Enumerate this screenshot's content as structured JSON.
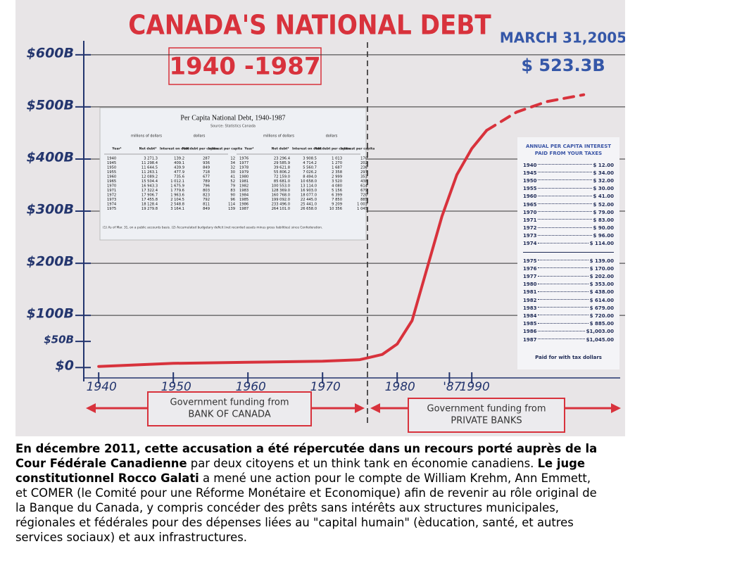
{
  "chart_data": {
    "type": "line",
    "title": "CANADA'S NATIONAL DEBT",
    "subtitle": "1940 -1987",
    "x": [
      1940,
      1950,
      1960,
      1970,
      1975,
      1978,
      1980,
      1982,
      1984,
      1986,
      1988,
      1990,
      1992,
      1996,
      2000,
      2005
    ],
    "series": [
      {
        "color": "#d8323c",
        "dashed": false,
        "values": [
          2,
          8,
          10,
          12,
          15,
          25,
          45,
          90,
          190,
          290,
          370,
          420,
          455,
          null,
          null,
          null
        ]
      },
      {
        "color": "#d8323c",
        "dashed": true,
        "values": [
          null,
          null,
          null,
          null,
          null,
          null,
          null,
          null,
          null,
          null,
          null,
          null,
          455,
          490,
          510,
          523.3
        ]
      }
    ],
    "xlim": [
      1938,
      2008
    ],
    "ylim": [
      -20,
      620
    ],
    "xticks": [
      1940,
      1950,
      1960,
      1970,
      1980,
      {
        "value": 1987,
        "label": "'87"
      },
      1990
    ],
    "yticks": [
      {
        "value": 0,
        "label": "$0"
      },
      {
        "value": 50,
        "label": "$50B"
      },
      {
        "value": 100,
        "label": "$100B"
      },
      {
        "value": 200,
        "label": "$200B"
      },
      {
        "value": 300,
        "label": "$300B"
      },
      {
        "value": 400,
        "label": "$400B"
      },
      {
        "value": 500,
        "label": "$500B"
      },
      {
        "value": 600,
        "label": "$600B"
      }
    ],
    "grid": true,
    "annotations": [
      "MARCH 31,2005",
      "$ 523.3B"
    ]
  },
  "funding": [
    {
      "lines": [
        "Government funding from",
        "BANK OF CANADA"
      ]
    },
    {
      "lines": [
        "Government funding from",
        "PRIVATE BANKS"
      ]
    }
  ],
  "inset_table": {
    "title": "Per Capita National Debt, 1940-1987",
    "source": "Source: Statistics Canada",
    "group_headers": [
      "millions of dollars",
      "dollars"
    ],
    "columns": [
      "Year¹",
      "Net debt²",
      "Interest on debt",
      "Net debt per capita",
      "Interest per capita"
    ],
    "rows": [
      [
        "1940",
        "3 271.3",
        "139.2",
        "287",
        "12"
      ],
      [
        "1945",
        "11 298.4",
        "409.1",
        "936",
        "34"
      ],
      [
        "1950",
        "11 644.5",
        "439.9",
        "849",
        "32"
      ],
      [
        "1955",
        "11 263.1",
        "477.9",
        "718",
        "30"
      ],
      [
        "1960",
        "12 089.2",
        "735.6",
        "677",
        "41"
      ],
      [
        "1965",
        "15 504.4",
        "1 012.1",
        "789",
        "52"
      ],
      [
        "1970",
        "16 943.3",
        "1 675.9",
        "796",
        "79"
      ],
      [
        "1971",
        "17 322.4",
        "1 779.6",
        "803",
        "83"
      ],
      [
        "1972",
        "17 906.7",
        "1 963.6",
        "823",
        "90"
      ],
      [
        "1973",
        "17 455.8",
        "2 104.5",
        "792",
        "96"
      ],
      [
        "1974",
        "18 128.4",
        "2 548.8",
        "811",
        "114"
      ],
      [
        "1975",
        "19 279.8",
        "3 164.1",
        "849",
        "139"
      ],
      [
        "1976",
        "23 296.4",
        "3 908.5",
        "1 013",
        "170"
      ],
      [
        "1977",
        "29 585.9",
        "4 714.2",
        "1 270",
        "202"
      ],
      [
        "1978",
        "39 621.8",
        "5 560.7",
        "1 687",
        "236"
      ],
      [
        "1979",
        "55 806.2",
        "7 026.2",
        "2 358",
        "297"
      ],
      [
        "1980",
        "72 159.0",
        "8 494.0",
        "2 999",
        "353"
      ],
      [
        "1981",
        "85 681.0",
        "10 658.0",
        "3 520",
        "438"
      ],
      [
        "1982",
        "100 553.0",
        "13 114.0",
        "4 080",
        "614"
      ],
      [
        "1983",
        "128 369.0",
        "16 903.0",
        "5 156",
        "679"
      ],
      [
        "1984",
        "160 768.0",
        "18 077.0",
        "6 399",
        "720"
      ],
      [
        "1985",
        "199 092.0",
        "22 445.0",
        "7 850",
        "885"
      ],
      [
        "1986",
        "233 496.0",
        "25 441.0",
        "9 209",
        "1 003"
      ],
      [
        "1987",
        "264 101.0",
        "26 658.0",
        "10 356",
        "1 045"
      ]
    ],
    "footnote": "(1) As of Mar. 31, on a public accounts basis. (2) Accumulated budgetary deficit (net recorded assets minus gross liabilities) since Confederation."
  },
  "interest_panel": {
    "title": "ANNUAL PER CAPITA INTEREST PAID FROM YOUR TAXES",
    "groups": [
      [
        [
          "1940",
          "$ 12.00"
        ],
        [
          "1945",
          "$ 34.00"
        ],
        [
          "1950",
          "$ 32.00"
        ],
        [
          "1955",
          "$ 30.00"
        ],
        [
          "1960",
          "$ 41.00"
        ],
        [
          "1965",
          "$ 52.00"
        ],
        [
          "1970",
          "$ 79.00"
        ],
        [
          "1971",
          "$ 83.00"
        ],
        [
          "1972",
          "$ 90.00"
        ],
        [
          "1973",
          "$ 96.00"
        ],
        [
          "1974",
          "$ 114.00"
        ]
      ],
      [
        [
          "1975",
          "$ 139.00"
        ],
        [
          "1976",
          "$ 170.00"
        ],
        [
          "1977",
          "$ 202.00"
        ],
        [
          "1980",
          "$ 353.00"
        ],
        [
          "1981",
          "$ 438.00"
        ],
        [
          "1982",
          "$ 614.00"
        ],
        [
          "1983",
          "$ 679.00"
        ],
        [
          "1984",
          "$ 720.00"
        ],
        [
          "1985",
          "$ 885.00"
        ],
        [
          "1986",
          "$1,003.00"
        ],
        [
          "1987",
          "$1,045.00"
        ]
      ]
    ],
    "footer": "Paid for with tax dollars"
  },
  "caption": {
    "runs": [
      {
        "text": "En décembre 2011, cette accusation a été répercutée dans un recours porté auprès de la Cour Fédérale Canadienne",
        "bold": true
      },
      {
        "text": " par deux citoyens et un think tank en économie canadiens. ",
        "bold": false
      },
      {
        "text": "Le juge constitutionnel Rocco Galati",
        "bold": true
      },
      {
        "text": " a mené une action pour le compte de William Krehm, Ann Emmett, et COMER (le Comité pour une Réforme Monétaire et Economique) afin de revenir au rôle original de la Banque du Canada, y compris concéder des prêts sans intérêts aux structures municipales, régionales et fédérales pour des dépenses liées au \"capital humain\" (èducation, santé, et autres services sociaux) et aux infrastructures.",
        "bold": false
      }
    ]
  }
}
